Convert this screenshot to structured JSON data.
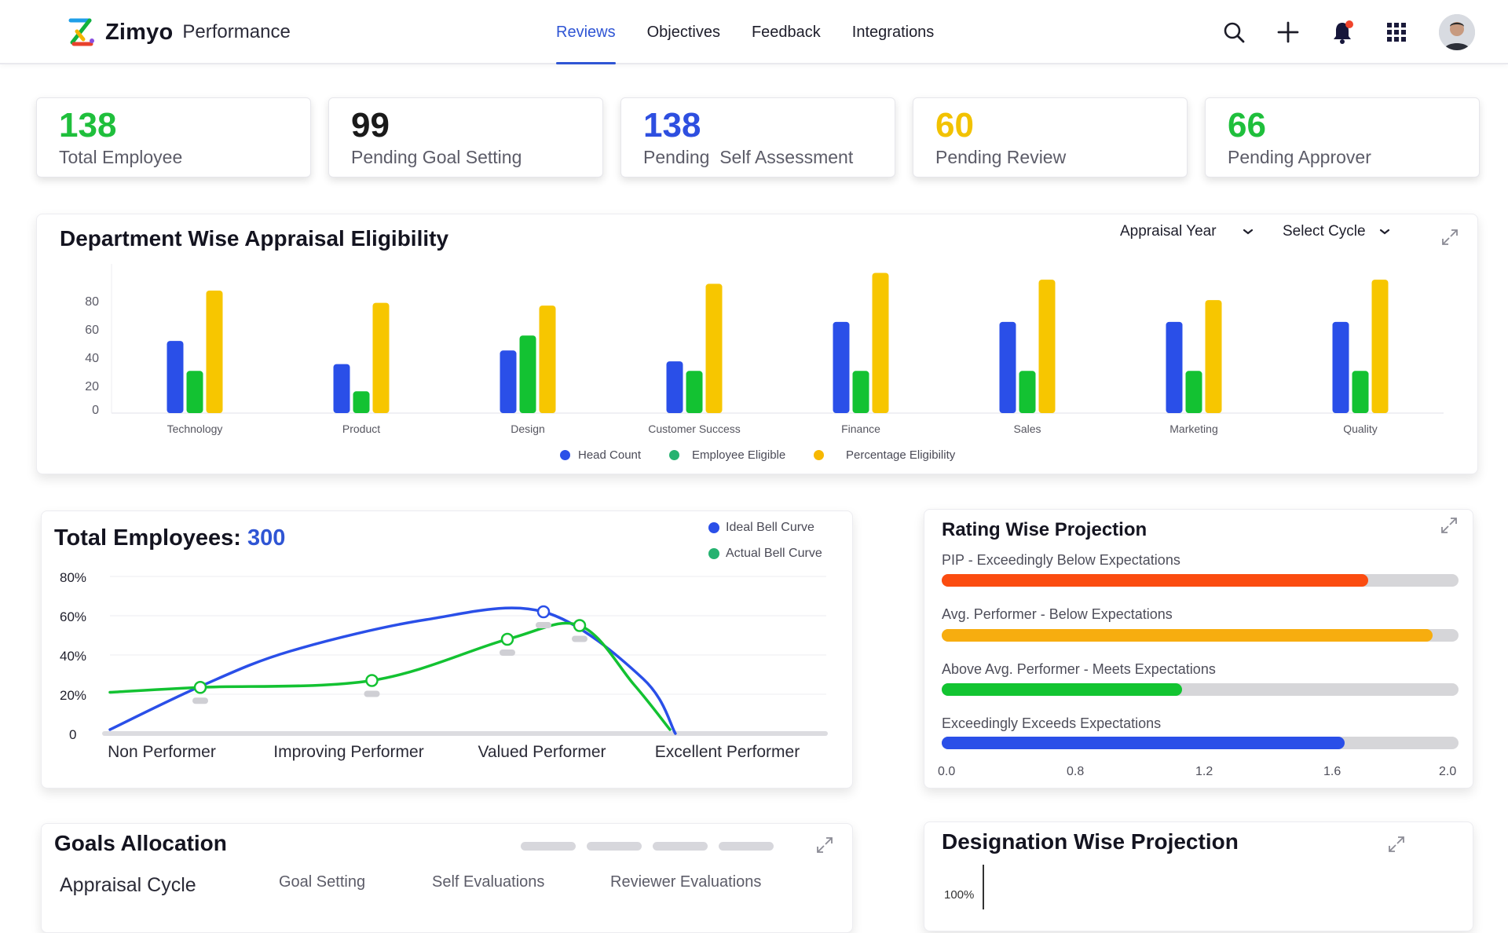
{
  "header": {
    "brand": "Zimyo",
    "product": "Performance",
    "nav": [
      {
        "label": "Reviews",
        "active": true
      },
      {
        "label": "Objectives",
        "active": false
      },
      {
        "label": "Feedback",
        "active": false
      },
      {
        "label": "Integrations",
        "active": false
      }
    ],
    "icons": [
      "search-icon",
      "plus-icon",
      "bell-icon",
      "apps-grid-icon",
      "user-avatar"
    ],
    "accent": "#2f55d4"
  },
  "stats": [
    {
      "value": "138",
      "label": "Total Employee",
      "color": "#1fbf3c"
    },
    {
      "value": "99",
      "label": "Pending Goal Setting",
      "color": "#1a1a1a"
    },
    {
      "value": "138",
      "label": "Pending  Self Assessment",
      "color": "#2e4fe0"
    },
    {
      "value": "60",
      "label": "Pending Review",
      "color": "#f2c200"
    },
    {
      "value": "66",
      "label": "Pending Approver",
      "color": "#1fbf3c"
    }
  ],
  "dept_card": {
    "title": "Department Wise Appraisal Eligibility",
    "dropdowns": [
      "Appraisal Year",
      "Select Cycle"
    ]
  },
  "bell_card": {
    "title_prefix": "Total Employees:",
    "total": "300"
  },
  "rating_card": {
    "title": "Rating Wise Projection",
    "items": [
      {
        "label": "PIP - Exceedingly Below Expectations",
        "value": 1.65,
        "color": "#fb4c10"
      },
      {
        "label": "Avg. Performer - Below Expectations",
        "value": 1.9,
        "color": "#f7ad0f"
      },
      {
        "label": "Above Avg. Performer - Meets Expectations",
        "value": 0.93,
        "color": "#12c431"
      },
      {
        "label": "Exceedingly Exceeds Expectations",
        "value": 1.56,
        "color": "#2a4fe8"
      }
    ],
    "ticks": [
      "0.0",
      "0.8",
      "1.2",
      "1.6",
      "2.0"
    ]
  },
  "goals_card": {
    "title": "Goals Allocation",
    "row_label": "Appraisal Cycle",
    "columns": [
      "Goal Setting",
      "Self Evaluations",
      "Reviewer Evaluations"
    ]
  },
  "designation_card": {
    "title": "Designation Wise Projection",
    "y_tick": "100%"
  },
  "chart_data": [
    {
      "type": "bar",
      "categories": [
        "Technology",
        "Product",
        "Design",
        "Customer Success",
        "Finance",
        "Sales",
        "Marketing",
        "Quality"
      ],
      "series": [
        {
          "name": "Head Count",
          "color": "#2a4fe8",
          "values": [
            53,
            36,
            46,
            38,
            67,
            67,
            67,
            67
          ]
        },
        {
          "name": "Employee Eligible",
          "color": "#13c232",
          "values": [
            31,
            16,
            57,
            31,
            31,
            31,
            31,
            31
          ]
        },
        {
          "name": "Percentage Eligibility",
          "color": "#f7c600",
          "values": [
            90,
            81,
            79,
            95,
            103,
            98,
            83,
            98
          ]
        }
      ],
      "yticks": [
        0,
        20,
        40,
        60,
        80
      ],
      "ylim": [
        0,
        105
      ],
      "legend": "bottom"
    },
    {
      "type": "line",
      "categories": [
        "Non Performer",
        "Improving Performer",
        "Valued Performer",
        "Excellent Performer"
      ],
      "series": [
        {
          "name": "Ideal Bell Curve",
          "color": "#2a4fe8",
          "points": [
            [
              0,
              2
            ],
            [
              0.5,
              24
            ],
            [
              1,
              42
            ],
            [
              1.75,
              58
            ],
            [
              2.4,
              62
            ],
            [
              2.95,
              28
            ],
            [
              3.13,
              0
            ]
          ]
        },
        {
          "name": "Actual Bell Curve",
          "color": "#13c232",
          "points": [
            [
              0,
              21
            ],
            [
              0.5,
              23.5
            ],
            [
              1.45,
              27
            ],
            [
              2.2,
              48
            ],
            [
              2.6,
              55
            ],
            [
              2.9,
              25
            ],
            [
              3.1,
              2
            ]
          ]
        }
      ],
      "yticks": [
        "0",
        "20%",
        "40%",
        "60%",
        "80%"
      ],
      "ylim": [
        0,
        80
      ],
      "legend": "top-right"
    }
  ]
}
